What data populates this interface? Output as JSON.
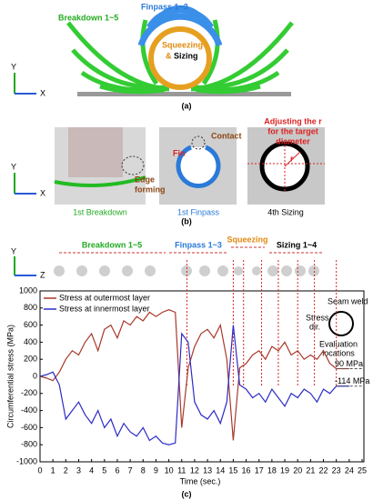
{
  "panel_a": {
    "labels": {
      "breakdown": "Breakdown 1~5",
      "finpass": "Finpass 1~3",
      "squeezing": "Squeezing",
      "amp": "&",
      "sizing": "Sizing"
    },
    "axes": [
      "Y",
      "X"
    ],
    "caption": "(a)"
  },
  "panel_b": {
    "edge_forming": [
      "Edge",
      "forming"
    ],
    "contact": "Contact",
    "fin": "Fin",
    "adjusting": [
      "Adjusting the r",
      "for the target",
      "diameter"
    ],
    "r": "r",
    "captions": [
      "1st Breakdown",
      "1st Finpass",
      "4th Sizing"
    ],
    "axes": [
      "Y",
      "X"
    ],
    "caption": "(b)"
  },
  "chart_data": {
    "type": "line",
    "xlabel": "Time (sec.)",
    "ylabel": "Circumferential stress (MPa)",
    "x": [
      0,
      0.5,
      1,
      1.5,
      2,
      2.5,
      3,
      3.5,
      4,
      4.5,
      5,
      5.5,
      6,
      6.5,
      7,
      7.5,
      8,
      8.5,
      9,
      9.5,
      10,
      10.5,
      11,
      11.5,
      12,
      12.5,
      13,
      13.5,
      14,
      14.5,
      15,
      15.5,
      16,
      16.5,
      17,
      17.5,
      18,
      18.5,
      19,
      19.5,
      20,
      20.5,
      21,
      21.5,
      22,
      22.5,
      23,
      23.5,
      24
    ],
    "series": [
      {
        "name": "Stress at outermost layer",
        "color": "#a8392b",
        "values": [
          0,
          -20,
          -50,
          50,
          200,
          300,
          250,
          400,
          500,
          300,
          550,
          600,
          450,
          650,
          600,
          700,
          650,
          750,
          700,
          750,
          780,
          750,
          -600,
          100,
          350,
          500,
          550,
          450,
          600,
          200,
          -750,
          100,
          150,
          250,
          300,
          200,
          350,
          300,
          400,
          250,
          300,
          200,
          250,
          200,
          300,
          150,
          90,
          90,
          90
        ]
      },
      {
        "name": "Stress at innermost layer",
        "color": "#2c2cc8",
        "values": [
          0,
          20,
          50,
          -100,
          -500,
          -400,
          -300,
          -450,
          -550,
          -400,
          -600,
          -500,
          -700,
          -550,
          -650,
          -700,
          -600,
          -750,
          -700,
          -780,
          -800,
          -780,
          500,
          400,
          -300,
          -450,
          -500,
          -400,
          -550,
          -300,
          600,
          -100,
          -150,
          -250,
          -200,
          -300,
          -150,
          -250,
          -350,
          -200,
          -250,
          -150,
          -200,
          -300,
          -150,
          -200,
          -114,
          -114,
          -114
        ]
      }
    ],
    "xlim": [
      0,
      25
    ],
    "xticks": [
      0,
      1,
      2,
      3,
      4,
      5,
      6,
      7,
      8,
      9,
      10,
      11,
      12,
      13,
      14,
      15,
      16,
      17,
      18,
      19,
      20,
      21,
      22,
      23,
      24,
      25
    ],
    "ylim": [
      -1000,
      1000
    ],
    "yticks": [
      -1000,
      -800,
      -600,
      -400,
      -200,
      0,
      200,
      400,
      600,
      800,
      1000
    ],
    "grid": false,
    "legend": "upper left",
    "reference_lines": [
      {
        "value": 90,
        "label": "90 MPa"
      },
      {
        "value": -114,
        "label": "-114 MPa"
      }
    ],
    "stage_lines": [
      11.4,
      15.0,
      15.8,
      17.2,
      18.5,
      20.0,
      21.3,
      23.0
    ],
    "stages": [
      "Breakdown 1~5",
      "Finpass 1~3",
      "Squeezing",
      "Sizing 1~4"
    ],
    "axes_icon": [
      "Y",
      "Z"
    ],
    "inset": {
      "seam": "Seam weld",
      "stress_dir": [
        "Stress",
        "dir."
      ],
      "eval": [
        "Evaluation",
        "locations"
      ]
    },
    "caption": "(c)"
  }
}
